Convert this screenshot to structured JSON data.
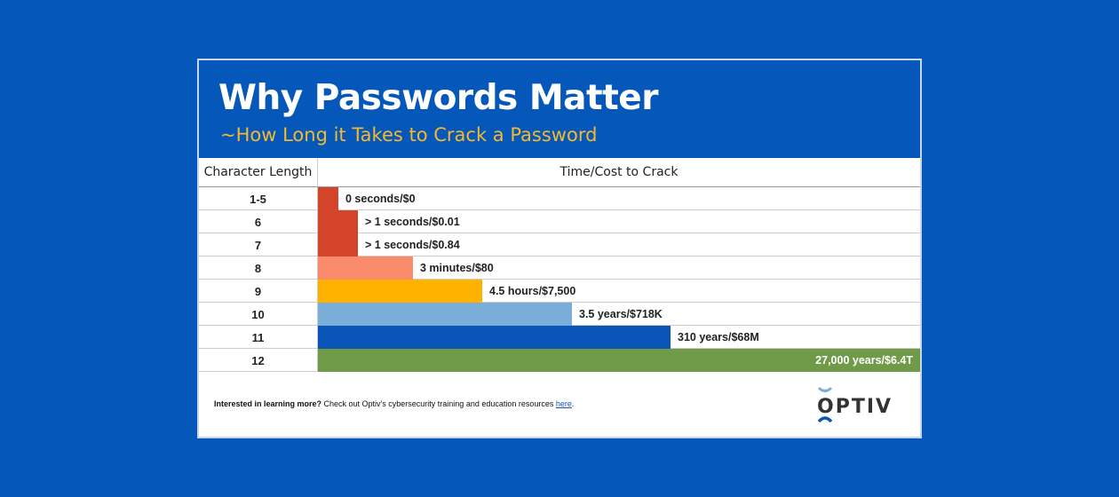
{
  "header": {
    "title": "Why Passwords Matter",
    "subtitle": "~How Long it Takes to Crack a Password"
  },
  "chart_data": {
    "type": "table",
    "columns": [
      "Character Length",
      "Time/Cost to Crack"
    ],
    "rows": [
      {
        "length": "1-5",
        "label": "0 seconds/$0",
        "bar": 0.034,
        "color": "#d4442a"
      },
      {
        "length": "6",
        "label": "> 1 seconds/$0.01",
        "bar": 0.066,
        "color": "#d4442a"
      },
      {
        "length": "7",
        "label": "> 1 seconds/$0.84",
        "bar": 0.066,
        "color": "#d4442a"
      },
      {
        "length": "8",
        "label": "3 minutes/$80",
        "bar": 0.158,
        "color": "#fb8b6d"
      },
      {
        "length": "9",
        "label": "4.5 hours/$7,500",
        "bar": 0.273,
        "color": "#ffb300"
      },
      {
        "length": "10",
        "label": "3.5 years/$718K",
        "bar": 0.422,
        "color": "#7aaed8"
      },
      {
        "length": "11",
        "label": "310 years/$68M",
        "bar": 0.586,
        "color": "#0a55b8"
      },
      {
        "length": "12",
        "label": "27,000 years/$6.4T",
        "bar": 1.0,
        "color": "#6f9a47"
      }
    ]
  },
  "footer": {
    "bold": "Interested in learning more?",
    "text": " Check out Optiv's cybersecurity training and education resources ",
    "link": "here",
    "end": "."
  },
  "logo": {
    "text": "OPTIV"
  }
}
